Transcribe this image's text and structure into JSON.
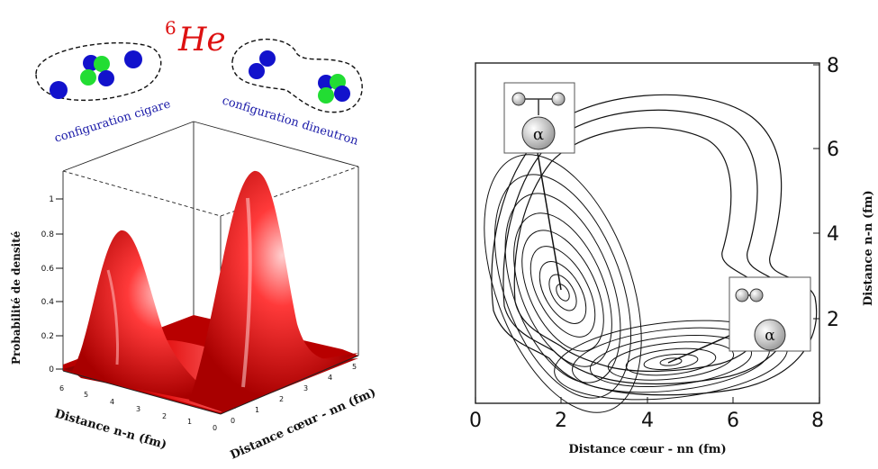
{
  "title": {
    "superscript": "6",
    "main": "He"
  },
  "configs": {
    "cigar_label": "configuration cigare",
    "dineutron_label": "configuration dineutron"
  },
  "left_plot": {
    "z_label": "Probabilité de densité",
    "x_label": "Distance n-n (fm)",
    "y_label": "Distance cœur - nn (fm)",
    "z_ticks": [
      "0",
      "0.2",
      "0.4",
      "0.6",
      "0.8",
      "1"
    ],
    "nn_ticks": [
      "6",
      "5",
      "4",
      "3",
      "2",
      "1",
      "0"
    ],
    "core_ticks": [
      "0",
      "1",
      "2",
      "3",
      "4",
      "5"
    ]
  },
  "right_plot": {
    "x_label": "Distance cœur - nn (fm)",
    "y_label": "Distance n-n (fm)",
    "x_ticks": [
      "0",
      "2",
      "4",
      "6",
      "8"
    ],
    "y_ticks": [
      "2",
      "4",
      "6",
      "8"
    ],
    "inset_symbol": "α"
  },
  "colors": {
    "title_red": "#dd1111",
    "neutron_blue": "#1212cc",
    "proton_green": "#22dd33",
    "label_blue": "#1a1aa8",
    "surface_red": "#e01010"
  },
  "chart_data": {
    "type": "heatmap",
    "x_label": "Distance cœur - nn (fm)",
    "y_label": "Distance n-n (fm)",
    "xlim": [
      0,
      8
    ],
    "ylim": [
      0,
      8
    ],
    "peaks": [
      {
        "configuration": "cigare",
        "x": 2.0,
        "y": 2.8
      },
      {
        "configuration": "dineutron",
        "x": 4.5,
        "y": 1.3
      }
    ]
  }
}
